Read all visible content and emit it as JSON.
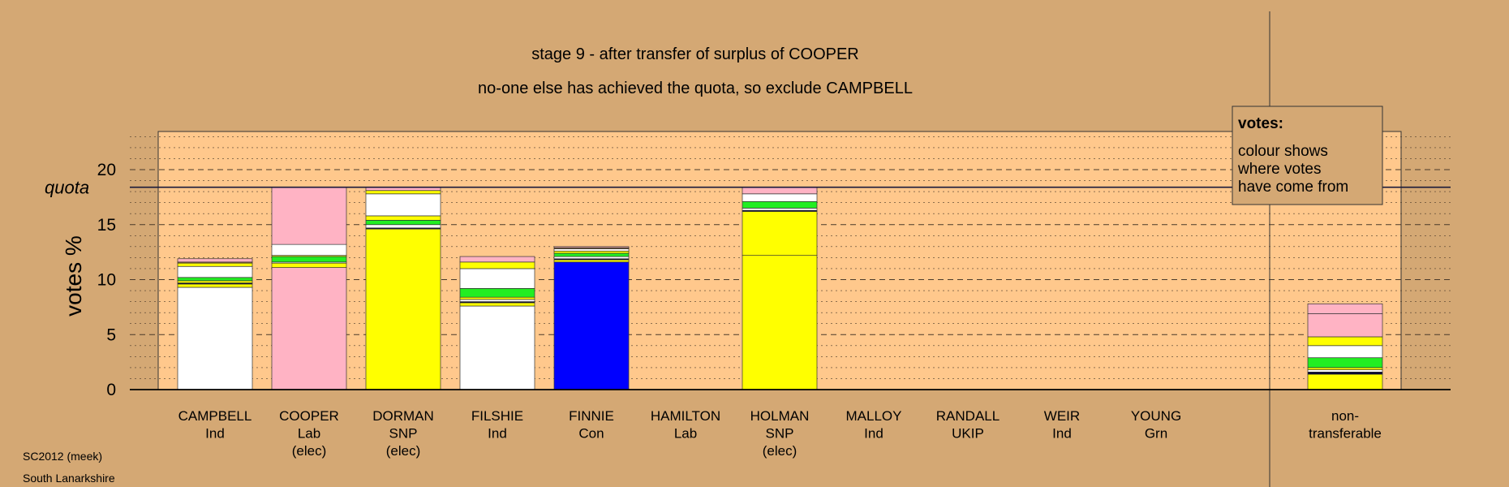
{
  "chart_data": {
    "type": "bar",
    "stacked": true,
    "title": "stage 9 - after transfer of surplus of COOPER",
    "subtitle": "no-one else has achieved the quota, so exclude CAMPBELL",
    "ylabel": "votes %",
    "ylim": [
      0,
      23.5
    ],
    "yticks": [
      "0",
      "5",
      "10",
      "15",
      "20"
    ],
    "quota_label": "quota",
    "quota": 18.4,
    "grid": "dashed-horizontal",
    "legend": {
      "position": "top-right",
      "title": "votes:",
      "lines": [
        "colour shows",
        "where votes",
        "have come from"
      ]
    },
    "colors": {
      "white": "#FFFFFF",
      "pink": "#FFB3C4",
      "yellow": "#FFFF00",
      "green": "#22EE22",
      "blue": "#0000FF",
      "brown": "#9B6B3A",
      "navy": "#000033",
      "plot_bg": "#FFC88C",
      "page_bg": "#D4A874"
    },
    "categories": [
      {
        "label": [
          "CAMPBELL",
          "Ind"
        ],
        "segments": [
          {
            "color": "white",
            "value": 9.3
          },
          {
            "color": "yellow",
            "value": 0.3
          },
          {
            "color": "navy",
            "value": 0.1
          },
          {
            "color": "yellow",
            "value": 0.2
          },
          {
            "color": "green",
            "value": 0.3
          },
          {
            "color": "white",
            "value": 1.0
          },
          {
            "color": "yellow",
            "value": 0.3
          },
          {
            "color": "brown",
            "value": 0.1
          },
          {
            "color": "pink",
            "value": 0.3
          }
        ]
      },
      {
        "label": [
          "COOPER",
          "Lab",
          "(elec)"
        ],
        "segments": [
          {
            "color": "pink",
            "value": 11.1
          },
          {
            "color": "yellow",
            "value": 0.4
          },
          {
            "color": "white",
            "value": 0.1
          },
          {
            "color": "green",
            "value": 0.5
          },
          {
            "color": "yellow",
            "value": 0.1
          },
          {
            "color": "white",
            "value": 1.0
          },
          {
            "color": "pink",
            "value": 5.2
          }
        ]
      },
      {
        "label": [
          "DORMAN",
          "SNP",
          "(elec)"
        ],
        "segments": [
          {
            "color": "yellow",
            "value": 14.6
          },
          {
            "color": "navy",
            "value": 0.1
          },
          {
            "color": "white",
            "value": 0.3
          },
          {
            "color": "green",
            "value": 0.4
          },
          {
            "color": "yellow",
            "value": 0.4
          },
          {
            "color": "white",
            "value": 2.0
          },
          {
            "color": "yellow",
            "value": 0.3
          },
          {
            "color": "pink",
            "value": 0.3
          }
        ]
      },
      {
        "label": [
          "FILSHIE",
          "Ind"
        ],
        "segments": [
          {
            "color": "white",
            "value": 7.6
          },
          {
            "color": "yellow",
            "value": 0.3
          },
          {
            "color": "navy",
            "value": 0.1
          },
          {
            "color": "white",
            "value": 0.2
          },
          {
            "color": "yellow",
            "value": 0.2
          },
          {
            "color": "green",
            "value": 0.8
          },
          {
            "color": "white",
            "value": 1.8
          },
          {
            "color": "yellow",
            "value": 0.6
          },
          {
            "color": "pink",
            "value": 0.5
          }
        ]
      },
      {
        "label": [
          "FINNIE",
          "Con"
        ],
        "segments": [
          {
            "color": "blue",
            "value": 11.6
          },
          {
            "color": "yellow",
            "value": 0.2
          },
          {
            "color": "navy",
            "value": 0.1
          },
          {
            "color": "white",
            "value": 0.2
          },
          {
            "color": "green",
            "value": 0.3
          },
          {
            "color": "yellow",
            "value": 0.2
          },
          {
            "color": "white",
            "value": 0.2
          },
          {
            "color": "brown",
            "value": 0.1
          },
          {
            "color": "pink",
            "value": 0.1
          }
        ]
      },
      {
        "label": [
          "HAMILTON",
          "Lab"
        ],
        "segments": []
      },
      {
        "label": [
          "HOLMAN",
          "SNP",
          "(elec)"
        ],
        "segments": [
          {
            "color": "yellow",
            "value": 12.2
          },
          {
            "color": "yellow",
            "value": 4.0
          },
          {
            "color": "navy",
            "value": 0.1
          },
          {
            "color": "white",
            "value": 0.2
          },
          {
            "color": "green",
            "value": 0.6
          },
          {
            "color": "white",
            "value": 0.7
          },
          {
            "color": "pink",
            "value": 0.6
          }
        ]
      },
      {
        "label": [
          "MALLOY",
          "Ind"
        ],
        "segments": []
      },
      {
        "label": [
          "RANDALL",
          "UKIP"
        ],
        "segments": []
      },
      {
        "label": [
          "WEIR",
          "Ind"
        ],
        "segments": []
      },
      {
        "label": [
          "YOUNG",
          "Grn"
        ],
        "segments": []
      }
    ],
    "nontransferable": {
      "label": [
        "non-",
        "transferable"
      ],
      "segments": [
        {
          "color": "yellow",
          "value": 1.4
        },
        {
          "color": "navy",
          "value": 0.2
        },
        {
          "color": "white",
          "value": 0.2
        },
        {
          "color": "yellow",
          "value": 0.2
        },
        {
          "color": "green",
          "value": 0.9
        },
        {
          "color": "white",
          "value": 1.1
        },
        {
          "color": "yellow",
          "value": 0.8
        },
        {
          "color": "pink",
          "value": 2.1
        },
        {
          "color": "pink",
          "value": 0.9
        }
      ]
    }
  },
  "footer": {
    "line1": "SC2012 (meek)",
    "line2": "South Lanarkshire"
  }
}
